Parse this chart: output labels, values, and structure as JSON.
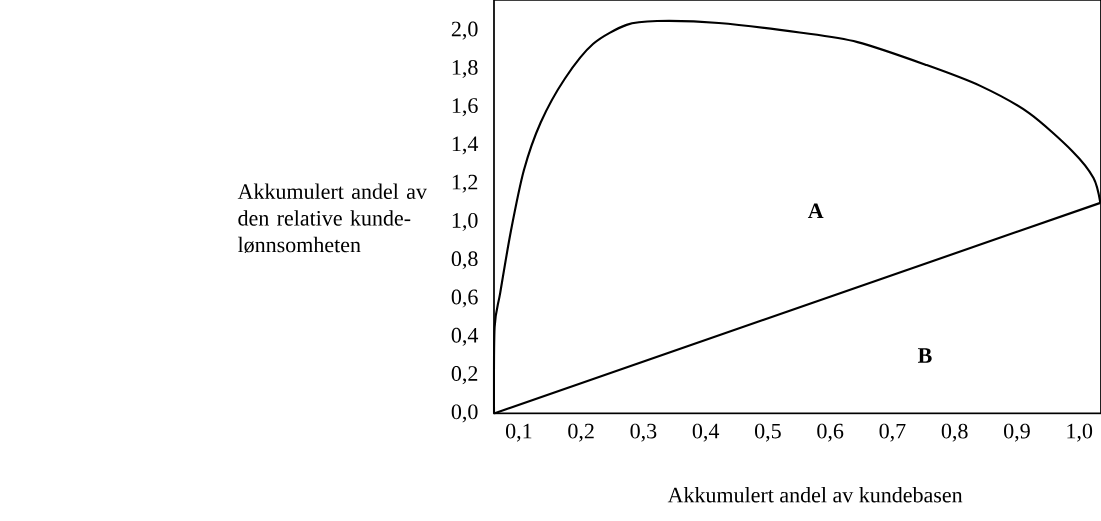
{
  "chart_data": {
    "type": "line",
    "xlabel": "Akkumulert andel av kundebasen",
    "ylabel": "Akkumulert andel av den relative kunde-lønnsomheten",
    "xlim": [
      0.06,
      1.035
    ],
    "ylim": [
      0,
      2.16
    ],
    "xticks": [
      {
        "value": 0.1,
        "label": "0,1"
      },
      {
        "value": 0.2,
        "label": "0,2"
      },
      {
        "value": 0.3,
        "label": "0,3"
      },
      {
        "value": 0.4,
        "label": "0,4"
      },
      {
        "value": 0.5,
        "label": "0,5"
      },
      {
        "value": 0.6,
        "label": "0,6"
      },
      {
        "value": 0.7,
        "label": "0,7"
      },
      {
        "value": 0.8,
        "label": "0,8"
      },
      {
        "value": 0.9,
        "label": "0,9"
      },
      {
        "value": 1.0,
        "label": "1,0"
      }
    ],
    "yticks": [
      {
        "value": 0,
        "label": "0,0"
      },
      {
        "value": 0.2,
        "label": "0,2"
      },
      {
        "value": 0.4,
        "label": "0,4"
      },
      {
        "value": 0.6,
        "label": "0,6"
      },
      {
        "value": 0.8,
        "label": "0,8"
      },
      {
        "value": 1.0,
        "label": "1,0"
      },
      {
        "value": 1.2,
        "label": "1,2"
      },
      {
        "value": 1.4,
        "label": "1,4"
      },
      {
        "value": 1.6,
        "label": "1,6"
      },
      {
        "value": 1.8,
        "label": "1,8"
      },
      {
        "value": 2.0,
        "label": "2,0"
      }
    ],
    "series": [
      {
        "color": "#000000",
        "x": [
          0.06,
          0.061,
          0.07,
          0.087,
          0.108,
          0.135,
          0.174,
          0.219,
          0.273,
          0.322,
          0.421,
          0.551,
          0.644,
          0.755,
          0.842,
          0.919,
          0.989,
          1.023,
          1.034
        ],
        "values": [
          0,
          0.45,
          0.63,
          0.95,
          1.27,
          1.52,
          1.75,
          1.93,
          2.03,
          2.05,
          2.04,
          1.99,
          1.94,
          1.82,
          1.71,
          1.57,
          1.37,
          1.23,
          1.1
        ]
      },
      {
        "color": "#000000",
        "x": [
          0.06,
          1.034
        ],
        "values": [
          0,
          1.1
        ]
      }
    ],
    "annotations": [
      "A",
      "B"
    ],
    "grid": false,
    "marker": "none",
    "line_style": "solid"
  }
}
